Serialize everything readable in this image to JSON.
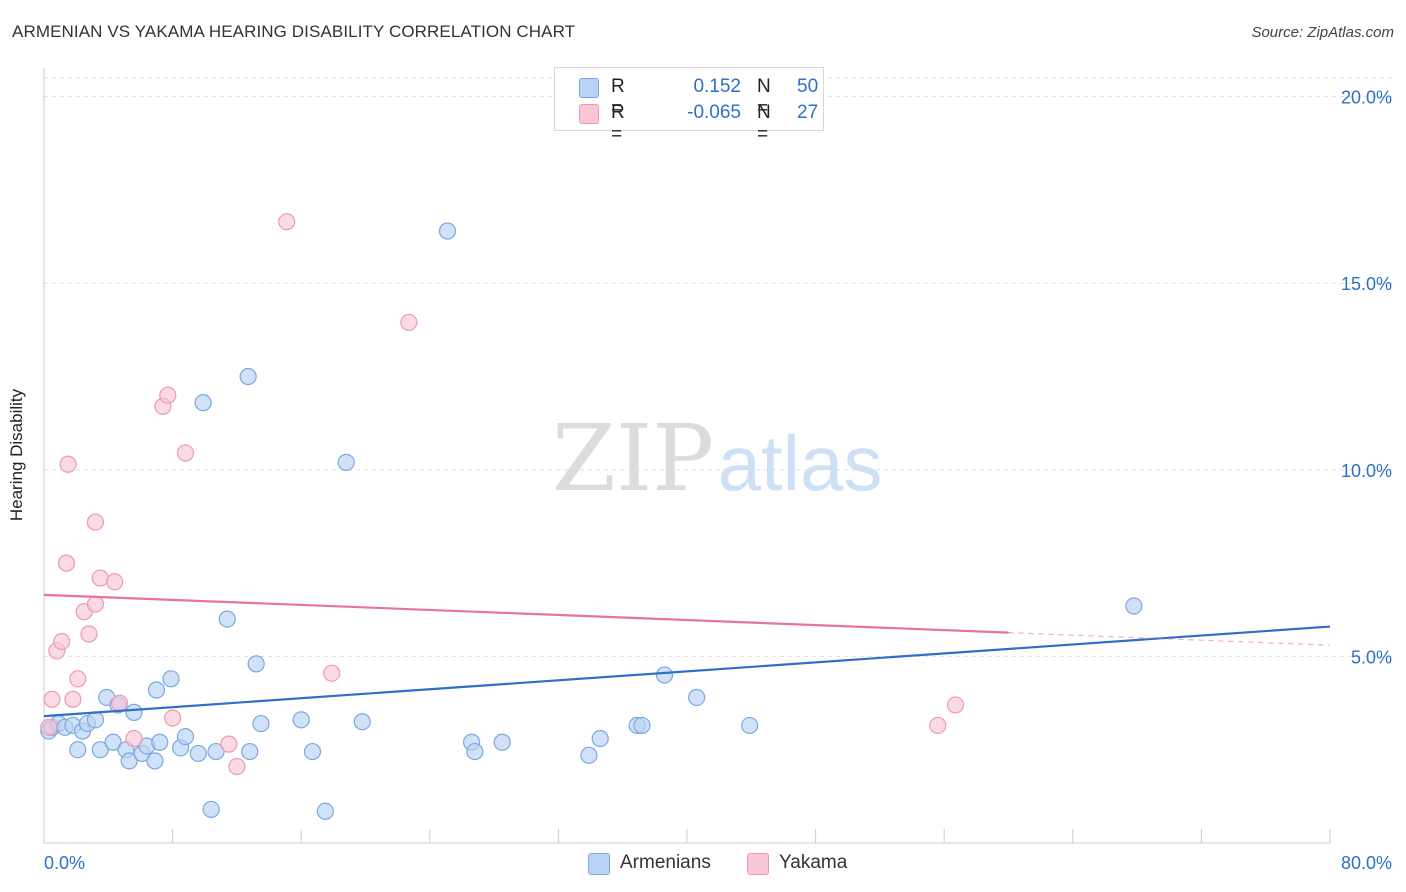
{
  "title": "ARMENIAN VS YAKAMA HEARING DISABILITY CORRELATION CHART",
  "source": "Source: ZipAtlas.com",
  "watermark": {
    "zip": "ZIP",
    "atlas": "atlas"
  },
  "colors": {
    "blue_fill": "#b8d3f5",
    "blue_stroke": "#7aa8e0",
    "blue_line": "#2f6fc7",
    "pink_fill": "#f8c6d6",
    "pink_stroke": "#ec9ab5",
    "pink_line": "#e8739b",
    "axis_text": "#2f6fc7",
    "grid": "#dddddd"
  },
  "legend": {
    "rows": [
      {
        "r_label": "R =",
        "r_value": "0.152",
        "n_label": "N =",
        "n_value": "50"
      },
      {
        "r_label": "R =",
        "r_value": "-0.065",
        "n_label": "N =",
        "n_value": "27"
      }
    ]
  },
  "bottom_legend": {
    "series1": "Armenians",
    "series2": "Yakama"
  },
  "chart_data": {
    "type": "scatter",
    "title": "ARMENIAN VS YAKAMA HEARING DISABILITY CORRELATION CHART",
    "xlabel": "",
    "ylabel": "Hearing Disability",
    "xlim": [
      0,
      80
    ],
    "ylim": [
      0,
      20.5
    ],
    "x_tick_labels": [
      "0.0%",
      "80.0%"
    ],
    "y_ticks": [
      5,
      10,
      15,
      20
    ],
    "y_tick_labels": [
      "5.0%",
      "10.0%",
      "15.0%",
      "20.0%"
    ],
    "grid": true,
    "series": [
      {
        "name": "Armenians",
        "color": "#b8d3f5",
        "r": 0.152,
        "n": 50,
        "trend": {
          "x0": 0,
          "y0": 3.4,
          "x1": 80,
          "y1": 5.8,
          "solid_to": 80
        },
        "points": [
          [
            0.3,
            3.0
          ],
          [
            0.5,
            3.1
          ],
          [
            0.9,
            3.2
          ],
          [
            1.3,
            3.1
          ],
          [
            1.8,
            3.15
          ],
          [
            2.1,
            2.5
          ],
          [
            2.4,
            3.0
          ],
          [
            2.7,
            3.2
          ],
          [
            3.2,
            3.3
          ],
          [
            3.5,
            2.5
          ],
          [
            3.9,
            3.9
          ],
          [
            4.3,
            2.7
          ],
          [
            4.6,
            3.7
          ],
          [
            5.1,
            2.5
          ],
          [
            5.3,
            2.2
          ],
          [
            5.6,
            3.5
          ],
          [
            6.1,
            2.4
          ],
          [
            6.4,
            2.6
          ],
          [
            6.9,
            2.2
          ],
          [
            7.0,
            4.1
          ],
          [
            7.2,
            2.7
          ],
          [
            7.9,
            4.4
          ],
          [
            8.5,
            2.55
          ],
          [
            8.8,
            2.85
          ],
          [
            9.6,
            2.4
          ],
          [
            9.9,
            11.8
          ],
          [
            10.4,
            0.9
          ],
          [
            10.7,
            2.45
          ],
          [
            11.4,
            6.0
          ],
          [
            12.7,
            12.5
          ],
          [
            12.8,
            2.45
          ],
          [
            13.2,
            4.8
          ],
          [
            13.5,
            3.2
          ],
          [
            16.0,
            3.3
          ],
          [
            16.7,
            2.45
          ],
          [
            17.5,
            0.85
          ],
          [
            18.8,
            10.2
          ],
          [
            19.8,
            3.25
          ],
          [
            25.1,
            16.4
          ],
          [
            26.6,
            2.7
          ],
          [
            26.8,
            2.45
          ],
          [
            28.5,
            2.7
          ],
          [
            33.9,
            2.35
          ],
          [
            34.6,
            2.8
          ],
          [
            36.9,
            3.15
          ],
          [
            37.2,
            3.15
          ],
          [
            38.6,
            4.5
          ],
          [
            40.6,
            3.9
          ],
          [
            43.9,
            3.15
          ],
          [
            67.8,
            6.35
          ]
        ]
      },
      {
        "name": "Yakama",
        "color": "#f8c6d6",
        "r": -0.065,
        "n": 27,
        "trend": {
          "x0": 0,
          "y0": 6.65,
          "x1": 80,
          "y1": 5.3,
          "solid_to": 60
        },
        "points": [
          [
            0.3,
            3.1
          ],
          [
            0.5,
            3.85
          ],
          [
            0.8,
            5.15
          ],
          [
            1.1,
            5.4
          ],
          [
            1.5,
            10.15
          ],
          [
            1.4,
            7.5
          ],
          [
            1.8,
            3.85
          ],
          [
            2.1,
            4.4
          ],
          [
            2.5,
            6.2
          ],
          [
            2.8,
            5.6
          ],
          [
            3.2,
            8.6
          ],
          [
            3.2,
            6.4
          ],
          [
            3.5,
            7.1
          ],
          [
            4.4,
            7.0
          ],
          [
            4.7,
            3.75
          ],
          [
            5.6,
            2.8
          ],
          [
            7.4,
            11.7
          ],
          [
            7.7,
            12.0
          ],
          [
            8.0,
            3.35
          ],
          [
            8.8,
            10.45
          ],
          [
            11.5,
            2.65
          ],
          [
            12.0,
            2.05
          ],
          [
            15.1,
            16.65
          ],
          [
            17.9,
            4.55
          ],
          [
            22.7,
            13.95
          ],
          [
            55.6,
            3.15
          ],
          [
            56.7,
            3.7
          ]
        ]
      }
    ]
  }
}
